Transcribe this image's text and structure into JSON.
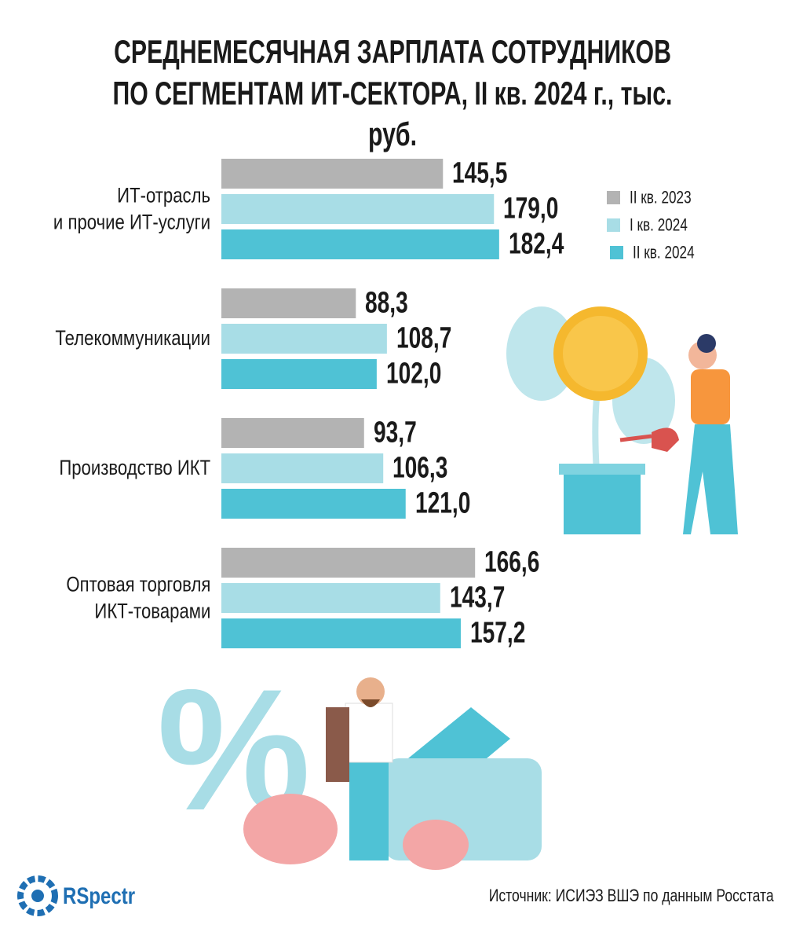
{
  "chart_data": {
    "type": "bar",
    "title": "СРЕДНЕМЕСЯЧНАЯ ЗАРПЛАТА СОТРУДНИКОВ\nПО СЕГМЕНТАМ ИТ-СЕКТОРА, II кв. 2024 г., тыс. руб.",
    "categories": [
      "ИТ-отрасль\nи прочие ИТ-услуги",
      "Телекоммуникации",
      "Производство ИКТ",
      "Оптовая торговля\nИКТ-товарами"
    ],
    "series": [
      {
        "name": "II кв. 2023",
        "color": "#b3b3b3",
        "values": [
          145.5,
          88.3,
          93.7,
          166.6
        ],
        "value_labels": [
          "145,5",
          "88,3",
          "93,7",
          "166,6"
        ]
      },
      {
        "name": "I кв. 2024",
        "color": "#a8dde6",
        "values": [
          179.0,
          108.7,
          106.3,
          143.7
        ],
        "value_labels": [
          "179,0",
          "108,7",
          "106,3",
          "143,7"
        ]
      },
      {
        "name": "II кв. 2024",
        "color": "#4fc2d5",
        "values": [
          182.4,
          102.0,
          121.0,
          157.2
        ],
        "value_labels": [
          "182,4",
          "102,0",
          "121,0",
          "157,2"
        ]
      }
    ]
  },
  "source": "Источник:  ИСИЭЗ ВШЭ по данным Росстата",
  "logo": "RSpectr"
}
